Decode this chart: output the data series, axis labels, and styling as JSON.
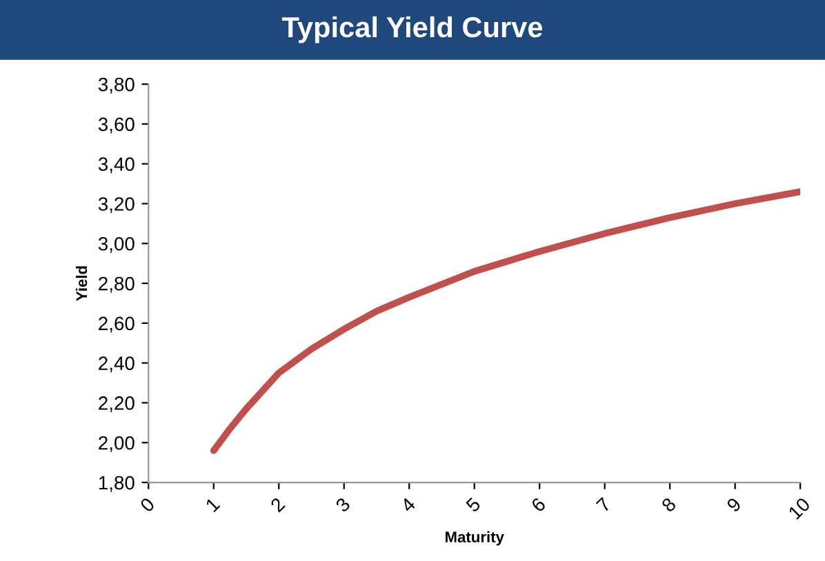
{
  "chart_data": {
    "type": "line",
    "title": "Typical Yield Curve",
    "xlabel": "Maturity",
    "ylabel": "Yield",
    "x": [
      1,
      1.25,
      1.5,
      2,
      2.5,
      3,
      3.5,
      4,
      5,
      6,
      7,
      8,
      9,
      10
    ],
    "series": [
      {
        "color": "#c0504d",
        "values": [
          1.96,
          2.07,
          2.17,
          2.35,
          2.47,
          2.57,
          2.66,
          2.73,
          2.86,
          2.96,
          3.05,
          3.13,
          3.2,
          3.26
        ]
      }
    ],
    "xlim": [
      0,
      10
    ],
    "xticks": [
      0,
      1,
      2,
      3,
      4,
      5,
      6,
      7,
      8,
      9,
      10
    ],
    "ylim": [
      1.8,
      3.8
    ],
    "yticks": [
      {
        "value": 1.8,
        "label": "1,80"
      },
      {
        "value": 2.0,
        "label": "2,00"
      },
      {
        "value": 2.2,
        "label": "2,20"
      },
      {
        "value": 2.4,
        "label": "2,40"
      },
      {
        "value": 2.6,
        "label": "2,60"
      },
      {
        "value": 2.8,
        "label": "2,80"
      },
      {
        "value": 3.0,
        "label": "3,00"
      },
      {
        "value": 3.2,
        "label": "3,20"
      },
      {
        "value": 3.4,
        "label": "3,40"
      },
      {
        "value": 3.6,
        "label": "3,60"
      },
      {
        "value": 3.8,
        "label": "3,80"
      }
    ],
    "grid": false,
    "marker": "none",
    "line_style": "solid"
  }
}
